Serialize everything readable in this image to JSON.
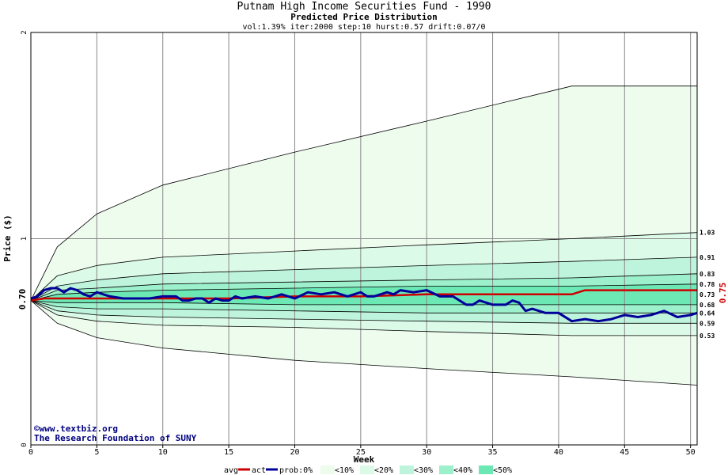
{
  "chart_data": {
    "type": "area",
    "title": "Putnam High Income Securities Fund - 1990",
    "subtitle": "Predicted Price Distribution",
    "params": "vol:1.39% iter:2000 step:10 hurst:0.57 drift:0.07/0",
    "xlabel": "Week",
    "ylabel": "Price ($)",
    "xlim": [
      0,
      50.5
    ],
    "ylim": [
      0,
      2
    ],
    "x_ticks": [
      "0",
      "5",
      "10",
      "15",
      "20",
      "25",
      "30",
      "35",
      "40",
      "45",
      "50"
    ],
    "y_ticks": [
      "0",
      "1",
      "2"
    ],
    "start_price_label": "0.70",
    "final_price_label": "0.75",
    "band_end_labels": [
      "1.03",
      "0.91",
      "0.83",
      "0.78",
      "0.73",
      "0.68",
      "0.64",
      "0.59",
      "0.53"
    ],
    "band_colors": [
      "#eefcee",
      "#dcfae8",
      "#bff4dc",
      "#9cf0cc",
      "#6ce8b4"
    ],
    "bands": [
      {
        "name": "<10%",
        "upper": [
          0.7,
          0.96,
          1.12,
          1.26,
          1.42,
          1.57,
          1.74,
          1.74
        ],
        "lower": [
          0.7,
          0.59,
          0.52,
          0.47,
          0.41,
          0.37,
          0.33,
          0.29
        ]
      },
      {
        "name": "<20%",
        "upper": [
          0.7,
          0.82,
          0.87,
          0.91,
          0.94,
          0.97,
          1.0,
          1.03
        ],
        "lower": [
          0.7,
          0.63,
          0.6,
          0.58,
          0.57,
          0.55,
          0.53,
          0.53
        ]
      },
      {
        "name": "<30%",
        "upper": [
          0.7,
          0.77,
          0.8,
          0.83,
          0.85,
          0.87,
          0.89,
          0.91
        ],
        "lower": [
          0.7,
          0.65,
          0.63,
          0.62,
          0.61,
          0.6,
          0.59,
          0.59
        ]
      },
      {
        "name": "<40%",
        "upper": [
          0.7,
          0.75,
          0.76,
          0.78,
          0.79,
          0.8,
          0.81,
          0.83
        ],
        "lower": [
          0.7,
          0.67,
          0.66,
          0.66,
          0.65,
          0.64,
          0.64,
          0.64
        ]
      },
      {
        "name": "<50%",
        "upper": [
          0.7,
          0.73,
          0.74,
          0.75,
          0.76,
          0.77,
          0.77,
          0.78
        ],
        "lower": [
          0.7,
          0.69,
          0.69,
          0.69,
          0.68,
          0.68,
          0.68,
          0.68
        ]
      }
    ],
    "band_x": [
      0,
      2,
      5,
      10,
      20,
      30,
      41,
      50.5
    ],
    "series": [
      {
        "name": "avg",
        "color": "#cc0000",
        "x": [
          0,
          1,
          2,
          5,
          10,
          15,
          20,
          25,
          30,
          35,
          40,
          41,
          42,
          45,
          50,
          50.5
        ],
        "y": [
          0.7,
          0.71,
          0.71,
          0.71,
          0.71,
          0.71,
          0.72,
          0.72,
          0.73,
          0.73,
          0.73,
          0.73,
          0.75,
          0.75,
          0.75,
          0.75
        ]
      },
      {
        "name": "act",
        "color": "#000099",
        "x": [
          0,
          0.5,
          1,
          1.5,
          2,
          2.5,
          3,
          3.5,
          4,
          4.5,
          5,
          6,
          7,
          8,
          9,
          10,
          10.5,
          11,
          11.5,
          12,
          12.5,
          13,
          13.5,
          14,
          14.5,
          15,
          15.5,
          16,
          17,
          18,
          19,
          20,
          21,
          22,
          23,
          24,
          24.5,
          25,
          25.5,
          26,
          27,
          27.5,
          28,
          29,
          30,
          31,
          32,
          33,
          33.5,
          34,
          35,
          36,
          36.5,
          37,
          37.5,
          38,
          39,
          40,
          41,
          42,
          43,
          44,
          45,
          46,
          47,
          48,
          49,
          50,
          50.5
        ],
        "y": [
          0.71,
          0.72,
          0.75,
          0.76,
          0.76,
          0.74,
          0.76,
          0.75,
          0.73,
          0.72,
          0.74,
          0.72,
          0.71,
          0.71,
          0.71,
          0.72,
          0.72,
          0.72,
          0.7,
          0.7,
          0.71,
          0.71,
          0.69,
          0.71,
          0.7,
          0.7,
          0.72,
          0.71,
          0.72,
          0.71,
          0.73,
          0.71,
          0.74,
          0.73,
          0.74,
          0.72,
          0.73,
          0.74,
          0.72,
          0.72,
          0.74,
          0.73,
          0.75,
          0.74,
          0.75,
          0.72,
          0.72,
          0.68,
          0.68,
          0.7,
          0.68,
          0.68,
          0.7,
          0.69,
          0.65,
          0.66,
          0.64,
          0.64,
          0.6,
          0.61,
          0.6,
          0.61,
          0.63,
          0.62,
          0.63,
          0.65,
          0.62,
          0.63,
          0.64
        ]
      }
    ],
    "legend": {
      "position": "bottom",
      "avg_label": "avg",
      "act_label": "act",
      "prob_label": "prob:0%",
      "band_labels": [
        "<10%",
        "<20%",
        "<30%",
        "<40%",
        "<50%"
      ]
    },
    "grid": true
  },
  "credit": {
    "line1": "©www.textbiz.org",
    "line2": "The Research Foundation of SUNY"
  }
}
